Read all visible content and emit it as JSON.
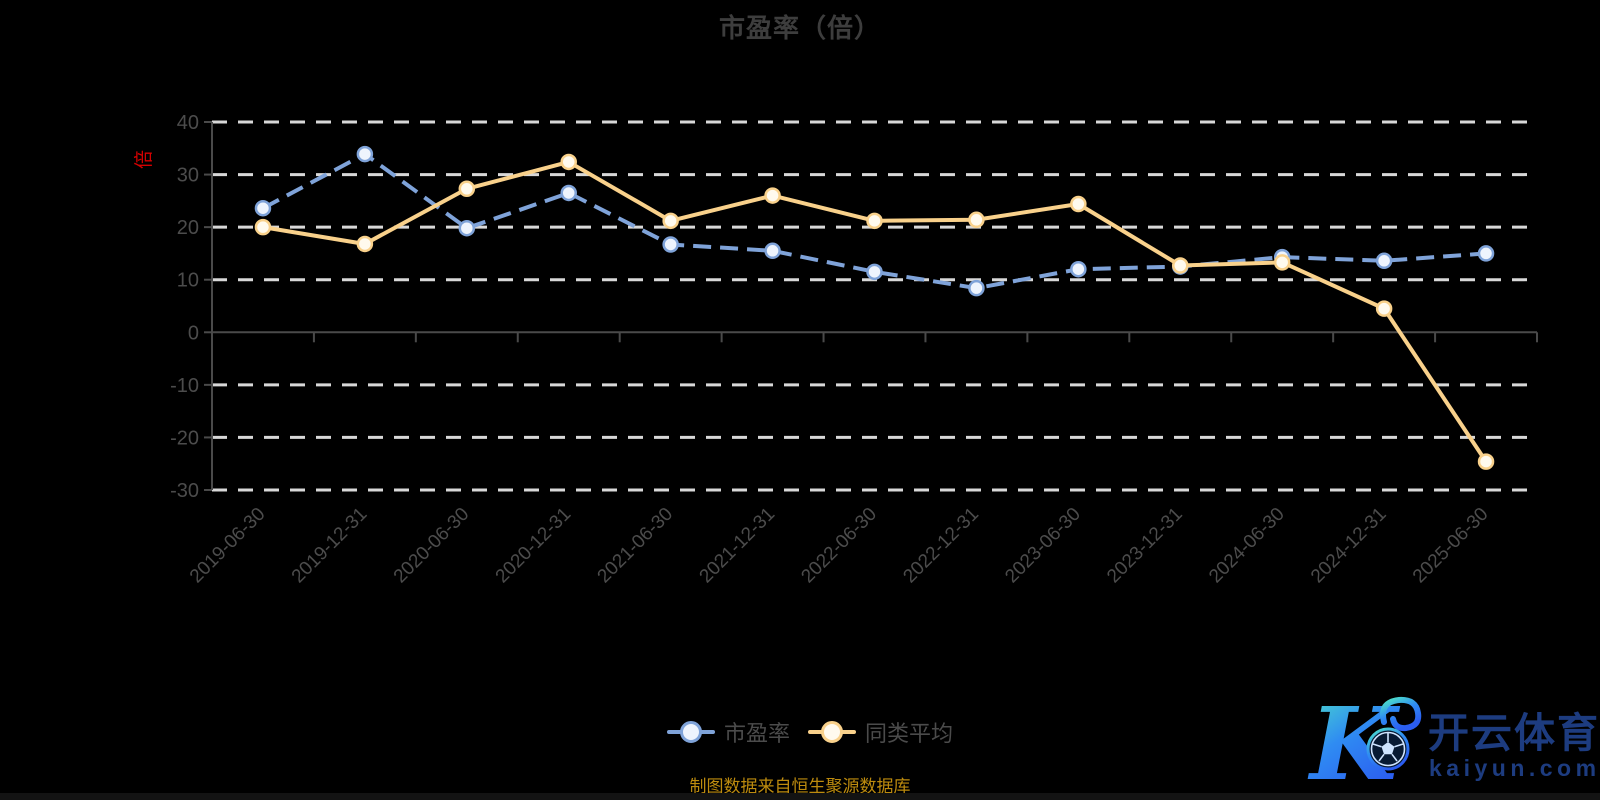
{
  "title": "市盈率（倍）",
  "y_axis": {
    "unit_label": "倍",
    "tick_labels": [
      "40",
      "30",
      "20",
      "10",
      "0",
      "-10",
      "-20",
      "-30"
    ]
  },
  "legend": {
    "items": [
      {
        "label": "市盈率",
        "color": "#7fa3d9",
        "marker_fill": "#eef4fd"
      },
      {
        "label": "同类平均",
        "color": "#f9d18b",
        "marker_fill": "#fffaee"
      }
    ]
  },
  "source_note": "制图数据来自恒生聚源数据库",
  "watermark": {
    "brand": "开云体育",
    "domain": "kaiyun.com"
  },
  "colors": {
    "background": "#000000",
    "title_text": "#3d3d3d",
    "axis_line": "#4a4a4a",
    "axis_label": "#4c4c4c",
    "gridline": "#d8d8d8",
    "unit_label_red": "#d40000",
    "source_text": "#bd8b0e",
    "logo_navy": "#1d3c80"
  },
  "chart_data": {
    "type": "line",
    "title": "市盈率（倍）",
    "categories": [
      "2019-06-30",
      "2019-12-31",
      "2020-06-30",
      "2020-12-31",
      "2021-06-30",
      "2021-12-31",
      "2022-06-30",
      "2022-12-31",
      "2023-06-30",
      "2023-12-31",
      "2024-06-30",
      "2024-12-31",
      "2025-06-30"
    ],
    "series": [
      {
        "name": "市盈率",
        "style": "dashed",
        "color": "#7fa3d9",
        "marker_fill": "#eef4fd",
        "values": [
          23.6,
          33.9,
          19.8,
          26.5,
          16.7,
          15.5,
          11.5,
          8.4,
          12.0,
          12.5,
          14.3,
          13.6,
          15.0
        ]
      },
      {
        "name": "同类平均",
        "style": "solid",
        "color": "#f9d18b",
        "marker_fill": "#fffaee",
        "values": [
          20.0,
          16.8,
          27.3,
          32.4,
          21.2,
          26.0,
          21.2,
          21.4,
          24.4,
          12.7,
          13.3,
          4.5,
          -24.6
        ]
      }
    ],
    "ylabel_unit": "倍",
    "ylim": [
      -30,
      40
    ],
    "ytick_step": 10,
    "grid": "horizontal-dashed",
    "zero_axis": true,
    "legend_position": "bottom"
  }
}
